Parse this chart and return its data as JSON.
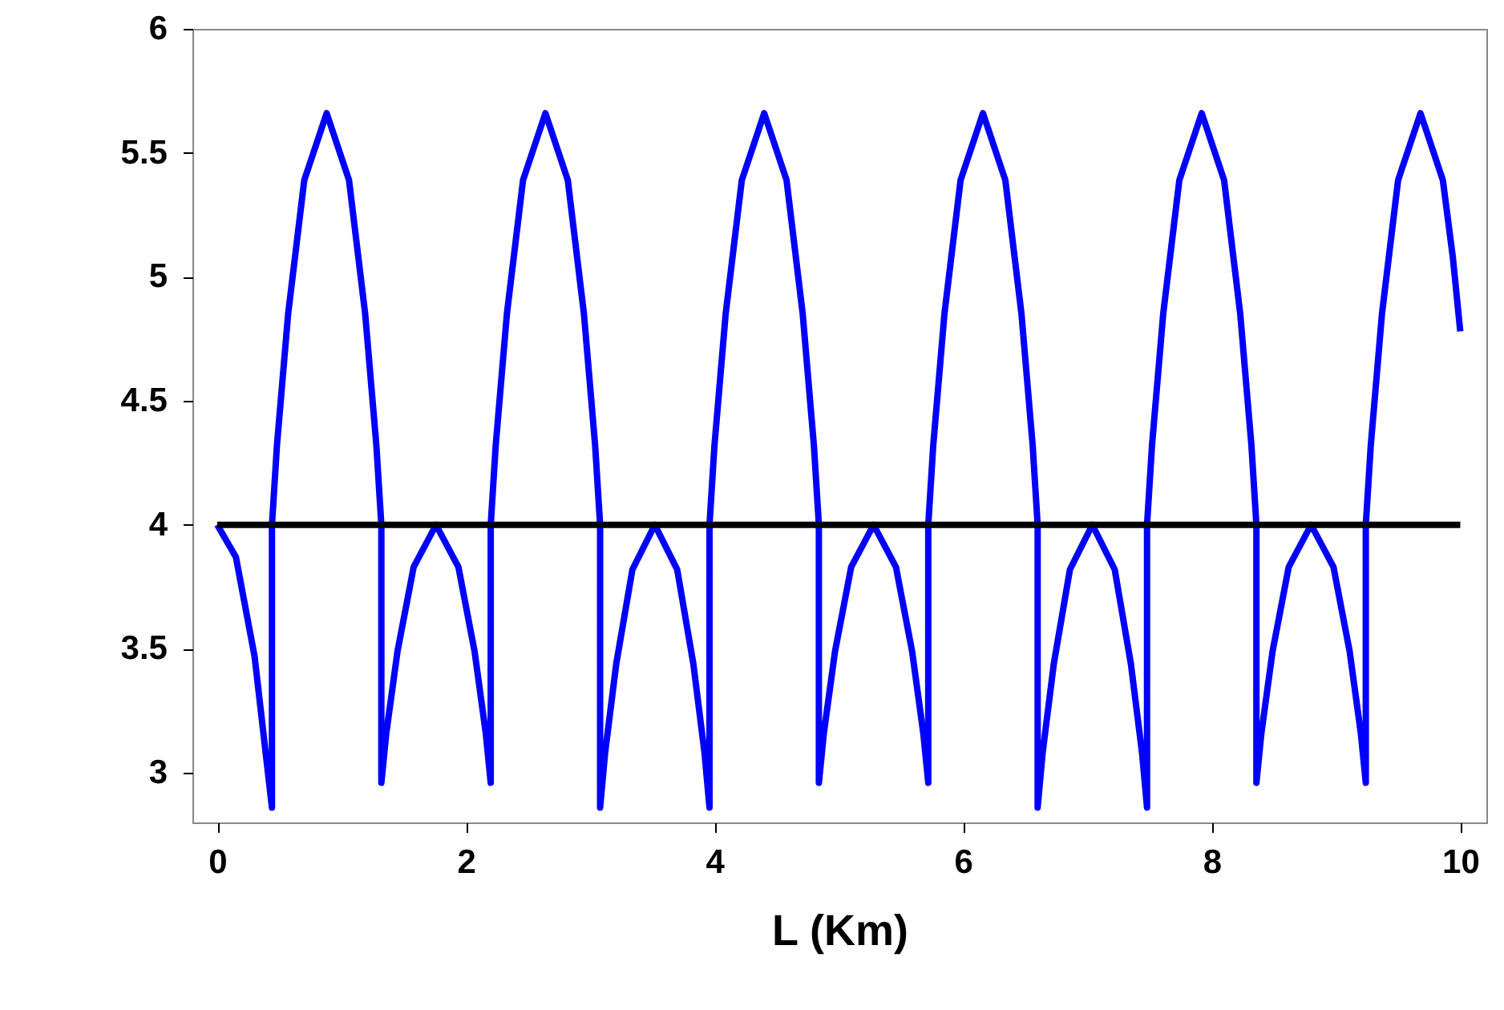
{
  "chart_data": {
    "type": "line",
    "xlabel": "L (Km)",
    "xlim": [
      -0.2,
      10.21
    ],
    "ylim": [
      2.8,
      6
    ],
    "xticks": [
      0,
      2,
      4,
      6,
      8,
      10
    ],
    "yticks": [
      3,
      3.5,
      4,
      4.5,
      5,
      5.5,
      6
    ],
    "grid": false,
    "line_style": "solid",
    "series": [
      {
        "color": "#0000ff",
        "x": [
          0,
          0.15,
          0.3,
          0.44,
          0.44,
          0.48,
          0.57,
          0.7,
          0.88,
          1.06,
          1.19,
          1.28,
          1.32,
          1.32,
          1.36,
          1.45,
          1.58,
          1.76,
          1.94,
          2.07,
          2.16,
          2.2,
          2.2,
          2.24,
          2.33,
          2.46,
          2.64,
          2.82,
          2.95,
          3.04,
          3.08,
          3.08,
          3.12,
          3.21,
          3.34,
          3.52,
          3.7,
          3.83,
          3.92,
          3.96,
          3.96,
          4.0,
          4.09,
          4.22,
          4.4,
          4.58,
          4.71,
          4.8,
          4.84,
          4.84,
          4.88,
          4.97,
          5.1,
          5.28,
          5.46,
          5.59,
          5.68,
          5.72,
          5.72,
          5.76,
          5.85,
          5.98,
          6.16,
          6.34,
          6.47,
          6.56,
          6.6,
          6.6,
          6.64,
          6.73,
          6.86,
          7.04,
          7.22,
          7.35,
          7.44,
          7.48,
          7.48,
          7.52,
          7.61,
          7.74,
          7.92,
          8.1,
          8.23,
          8.32,
          8.36,
          8.36,
          8.4,
          8.49,
          8.62,
          8.8,
          8.98,
          9.11,
          9.2,
          9.24,
          9.24,
          9.28,
          9.37,
          9.5,
          9.68,
          9.86,
          9.94,
          10
        ],
        "values": [
          4,
          3.87,
          3.47,
          2.86,
          4,
          4.32,
          4.85,
          5.39,
          5.66,
          5.39,
          4.85,
          4.32,
          4,
          2.96,
          3.16,
          3.49,
          3.83,
          4.0,
          3.83,
          3.49,
          3.16,
          2.96,
          4,
          4.32,
          4.85,
          5.39,
          5.66,
          5.39,
          4.85,
          4.32,
          4,
          2.86,
          3.08,
          3.44,
          3.82,
          4.0,
          3.82,
          3.44,
          3.08,
          2.86,
          4,
          4.32,
          4.85,
          5.39,
          5.66,
          5.39,
          4.85,
          4.32,
          4,
          2.96,
          3.16,
          3.49,
          3.83,
          4.0,
          3.83,
          3.49,
          3.16,
          2.96,
          4,
          4.32,
          4.85,
          5.39,
          5.66,
          5.39,
          4.85,
          4.32,
          4,
          2.86,
          3.08,
          3.44,
          3.82,
          4.0,
          3.82,
          3.44,
          3.08,
          2.86,
          4,
          4.32,
          4.85,
          5.39,
          5.66,
          5.39,
          4.85,
          4.32,
          4,
          2.96,
          3.16,
          3.49,
          3.83,
          4.0,
          3.83,
          3.49,
          3.16,
          2.96,
          4,
          4.32,
          4.85,
          5.39,
          5.66,
          5.39,
          5.08,
          4.78
        ]
      },
      {
        "color": "#000000",
        "x": [
          0,
          10
        ],
        "values": [
          4,
          4
        ]
      }
    ]
  }
}
